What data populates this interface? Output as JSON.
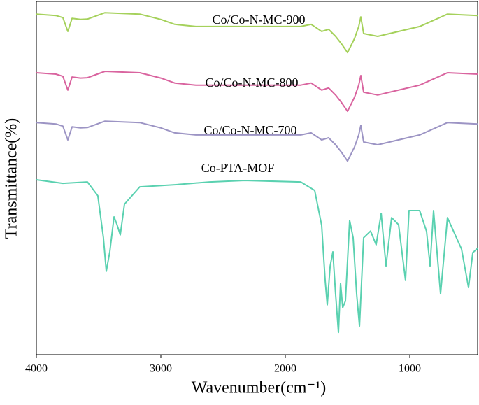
{
  "chart_data": {
    "type": "line",
    "x_label": "Wavenumber(cm⁻¹)",
    "y_label": "Transmittance(%)",
    "xlim": [
      4000,
      455
    ],
    "ylim": [
      0,
      100
    ],
    "xticks": [
      4000,
      3000,
      2000,
      1000
    ],
    "series": [
      {
        "name": "Co/Co-N-MC-900",
        "color": "#a5d15b",
        "x": [
          4000,
          3843,
          3787,
          3747,
          3713,
          3646,
          3590,
          3449,
          3169,
          3000,
          2888,
          2719,
          2326,
          1876,
          1792,
          1708,
          1652,
          1596,
          1551,
          1500,
          1444,
          1410,
          1393,
          1371,
          1258,
          921,
          697,
          455
        ],
        "values": [
          96.4,
          96.0,
          95.4,
          91.5,
          95.2,
          94.9,
          95.0,
          96.8,
          96.4,
          94.9,
          93.5,
          92.9,
          92.9,
          92.9,
          93.5,
          91.5,
          92.1,
          90.1,
          88.1,
          85.5,
          89.5,
          92.9,
          95.6,
          90.9,
          90.1,
          92.9,
          96.4,
          96.0
        ]
      },
      {
        "name": "Co/Co-N-MC-800",
        "color": "#d9649f",
        "x": [
          4000,
          3843,
          3787,
          3747,
          3713,
          3646,
          3590,
          3449,
          3169,
          3000,
          2888,
          2719,
          2326,
          1876,
          1792,
          1708,
          1652,
          1596,
          1551,
          1500,
          1444,
          1410,
          1393,
          1371,
          1258,
          921,
          697,
          455
        ],
        "values": [
          79.8,
          79.4,
          78.8,
          74.9,
          78.6,
          78.3,
          78.4,
          80.2,
          79.8,
          78.3,
          76.9,
          76.3,
          76.3,
          76.3,
          76.9,
          74.9,
          75.5,
          73.5,
          71.5,
          68.9,
          72.9,
          76.3,
          79.0,
          74.3,
          73.5,
          76.3,
          79.8,
          79.4
        ]
      },
      {
        "name": "Co/Co-N-MC-700",
        "color": "#9c94c4",
        "x": [
          4000,
          3843,
          3787,
          3747,
          3713,
          3646,
          3590,
          3449,
          3169,
          3000,
          2888,
          2719,
          2326,
          1876,
          1792,
          1708,
          1652,
          1596,
          1551,
          1500,
          1444,
          1410,
          1393,
          1371,
          1258,
          921,
          697,
          455
        ],
        "values": [
          65.7,
          65.3,
          64.7,
          60.8,
          64.5,
          64.2,
          64.3,
          66.1,
          65.7,
          64.2,
          62.8,
          62.2,
          62.2,
          62.2,
          62.8,
          60.8,
          61.4,
          59.4,
          57.4,
          54.8,
          58.8,
          62.2,
          64.9,
          60.2,
          59.4,
          62.2,
          65.7,
          65.3
        ]
      },
      {
        "name": "Co-PTA-MOF",
        "color": "#5ad1b0",
        "x": [
          4000,
          3787,
          3590,
          3506,
          3461,
          3438,
          3410,
          3376,
          3354,
          3326,
          3292,
          3169,
          2888,
          2607,
          2326,
          1876,
          1764,
          1708,
          1680,
          1663,
          1640,
          1618,
          1596,
          1573,
          1556,
          1539,
          1517,
          1483,
          1455,
          1427,
          1404,
          1371,
          1315,
          1270,
          1230,
          1191,
          1146,
          1090,
          1034,
          1006,
          921,
          865,
          837,
          809,
          753,
          697,
          584,
          528,
          494,
          455
        ],
        "values": [
          49.5,
          48.5,
          48.9,
          45.0,
          33.1,
          23.6,
          29.1,
          39.0,
          37.0,
          33.9,
          42.6,
          47.5,
          48.1,
          48.9,
          49.3,
          48.9,
          46.5,
          36.6,
          21.0,
          14.1,
          25.0,
          29.1,
          17.2,
          6.3,
          20.2,
          13.3,
          15.2,
          38.0,
          33.1,
          17.2,
          8.1,
          33.1,
          35.0,
          31.1,
          40.0,
          25.1,
          38.8,
          36.8,
          21.0,
          40.8,
          40.8,
          34.9,
          25.1,
          40.8,
          17.2,
          38.8,
          29.9,
          19.0,
          28.9,
          30.1
        ]
      }
    ]
  }
}
